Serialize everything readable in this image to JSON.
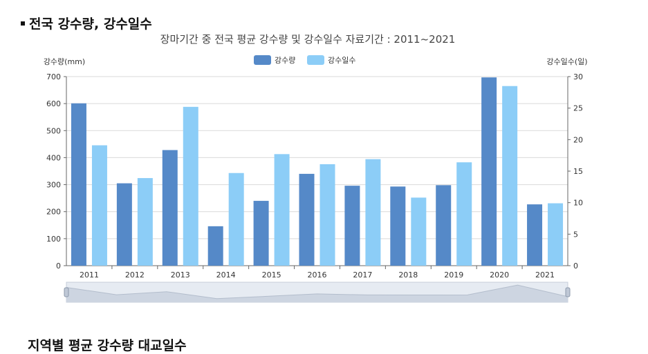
{
  "header": {
    "section_title": "전국 강수량, 강수일수",
    "next_section_title": "지역별 평균 강수량 대교일수"
  },
  "chart_data": {
    "type": "bar",
    "subtitle": "장마기간 중 전국 평균 강수량 및 강수일수 자료기간 : 2011~2021",
    "categories": [
      "2011",
      "2012",
      "2013",
      "2014",
      "2015",
      "2016",
      "2017",
      "2018",
      "2019",
      "2020",
      "2021"
    ],
    "series": [
      {
        "name": "강수량",
        "axis": "left",
        "color": "#5589c8",
        "values": [
          601,
          305,
          428,
          146,
          240,
          340,
          296,
          293,
          298,
          697,
          227
        ]
      },
      {
        "name": "강수일수",
        "axis": "right",
        "color": "#8ccdf7",
        "values": [
          19.1,
          13.9,
          25.2,
          14.7,
          17.7,
          16.1,
          16.9,
          10.8,
          16.4,
          28.5,
          9.9
        ]
      }
    ],
    "ylabel_left": "강수량(mm)",
    "ylabel_right": "강수일수(일)",
    "ylim_left": [
      0,
      700
    ],
    "ylim_right": [
      0,
      30
    ],
    "yticks_left": [
      "0",
      "100",
      "200",
      "300",
      "400",
      "500",
      "600",
      "700"
    ],
    "yticks_right": [
      "0",
      "5",
      "10",
      "15",
      "20",
      "25",
      "30"
    ],
    "legend_position": "top-center",
    "grid": true,
    "zoom_slider": true
  }
}
